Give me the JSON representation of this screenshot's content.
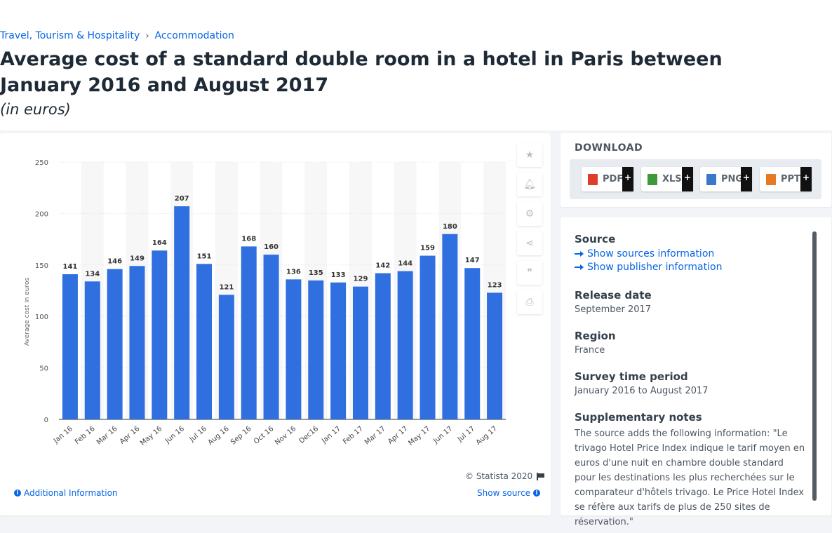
{
  "breadcrumb": [
    "Travel, Tourism & Hospitality",
    "Accommodation"
  ],
  "title": "Average cost of a standard double room in a hotel in Paris between January 2016 and August 2017",
  "subtitle": "(in euros)",
  "chart_data": {
    "type": "bar",
    "categories": [
      "Jan 16",
      "Feb 16",
      "Mar 16",
      "Apr 16",
      "May 16",
      "Jun 16",
      "Jul 16",
      "Aug 16",
      "Sep 16",
      "Oct 16",
      "Nov 16",
      "Dec16",
      "Jan 17",
      "Feb 17",
      "Mar 17",
      "Apr 17",
      "May 17",
      "Jun 17",
      "Jul 17",
      "Aug 17"
    ],
    "values": [
      141,
      134,
      146,
      149,
      164,
      207,
      151,
      121,
      168,
      160,
      136,
      135,
      133,
      129,
      142,
      144,
      159,
      180,
      147,
      123
    ],
    "ylabel": "Average cost in euros",
    "ylim": [
      0,
      250
    ],
    "yticks": [
      0,
      50,
      100,
      150,
      200,
      250
    ],
    "grid": true,
    "bar_color": "#2f6fe0"
  },
  "chart_tools": [
    "star-icon",
    "bell-icon",
    "gear-icon",
    "share-icon",
    "quote-icon",
    "print-icon"
  ],
  "copyright": "© Statista 2020",
  "additional_info": "Additional Information",
  "show_source": "Show source",
  "download": {
    "label": "DOWNLOAD",
    "buttons": [
      {
        "label": "PDF",
        "color": "#e03b2b"
      },
      {
        "label": "XLS",
        "color": "#3c9a3a"
      },
      {
        "label": "PNG",
        "color": "#3a78c9"
      },
      {
        "label": "PPT",
        "color": "#e57a22"
      }
    ],
    "plus": "+"
  },
  "info": {
    "source_h": "Source",
    "show_sources": "Show sources information",
    "show_publisher": "Show publisher information",
    "release_h": "Release date",
    "release_v": "September 2017",
    "region_h": "Region",
    "region_v": "France",
    "survey_h": "Survey time period",
    "survey_v": "January 2016 to August 2017",
    "notes_h": "Supplementary notes",
    "notes_v": "The source adds the following information: \"Le trivago Hotel Price Index indique le tarif moyen en euros d'une nuit en chambre double standard pour les destinations les plus recherchées sur le comparateur d'hôtels trivago. Le Price Hotel Index se réfère aux tarifs de plus de 250 sites de réservation.\""
  }
}
